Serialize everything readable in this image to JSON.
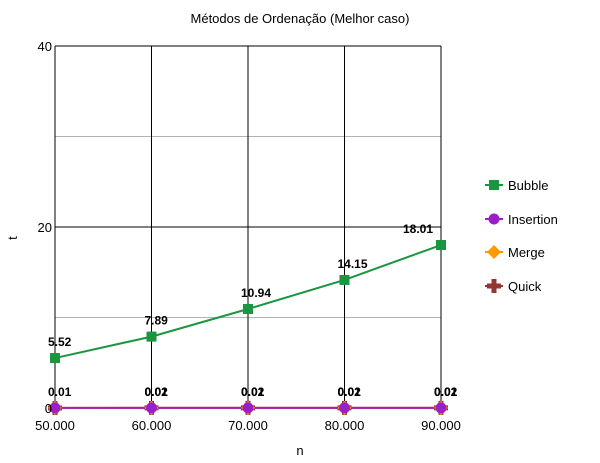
{
  "chart_data": {
    "type": "line",
    "title": "Métodos de Ordenação (Melhor caso)",
    "xlabel": "n",
    "ylabel": "t",
    "categories": [
      "50.000",
      "60.000",
      "70.000",
      "80.000",
      "90.000"
    ],
    "ylim": [
      0,
      40
    ],
    "y_major_ticks": [
      "0",
      "20",
      "40"
    ],
    "y_minor_gridlines": [
      10,
      30
    ],
    "grid": true,
    "legend_position": "right",
    "series": [
      {
        "name": "Bubble",
        "color": "#1a9641",
        "marker": "square",
        "values": [
          5.52,
          7.89,
          10.94,
          14.15,
          18.01
        ],
        "labels": [
          "5.52",
          "7.89",
          "10.94",
          "14.15",
          "18.01"
        ]
      },
      {
        "name": "Insertion",
        "color": "#9b1fc9",
        "marker": "circle",
        "values": [
          0.01,
          0.01,
          0.01,
          0.01,
          0.01
        ],
        "labels": [
          "0.01",
          "0.01",
          "0.01",
          "0.01",
          "0.01"
        ]
      },
      {
        "name": "Merge",
        "color": "#ff9900",
        "marker": "diamond",
        "values": [
          0.01,
          0.02,
          0.02,
          0.02,
          0.02
        ],
        "labels": [
          "",
          "0.02",
          "0.02",
          "0.02",
          "0.02"
        ]
      },
      {
        "name": "Quick",
        "color": "#943634",
        "marker": "cross",
        "values": [
          0,
          0.01,
          0.01,
          0.01,
          0.01
        ],
        "labels": [
          "",
          "0.01",
          "0.01",
          "0.01",
          "0.01"
        ]
      }
    ]
  }
}
